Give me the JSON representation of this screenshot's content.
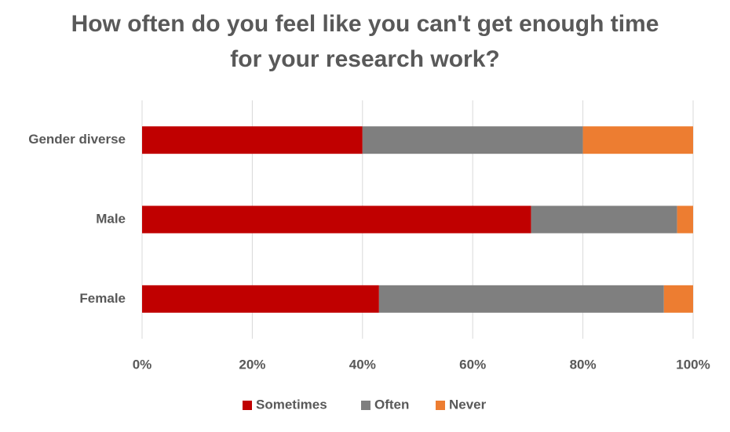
{
  "chart_data": {
    "type": "stacked-barh",
    "title": "How often do you feel like you can't get enough time for your research work?",
    "categories": [
      "Gender diverse",
      "Male",
      "Female"
    ],
    "series": [
      {
        "name": "Sometimes",
        "color": "#c00000",
        "values": [
          40,
          70.6,
          43.0
        ]
      },
      {
        "name": "Often",
        "color": "#7f7f7f",
        "values": [
          40,
          26.5,
          51.7
        ]
      },
      {
        "name": "Never",
        "color": "#ed7d31",
        "values": [
          20,
          2.9,
          5.3
        ]
      }
    ],
    "xlim": [
      0,
      100
    ],
    "xticks": [
      {
        "value": 0,
        "label": "0%"
      },
      {
        "value": 20,
        "label": "20%"
      },
      {
        "value": 40,
        "label": "40%"
      },
      {
        "value": 60,
        "label": "60%"
      },
      {
        "value": 80,
        "label": "80%"
      },
      {
        "value": 100,
        "label": "100%"
      }
    ],
    "grid": true,
    "legend": "bottom"
  }
}
